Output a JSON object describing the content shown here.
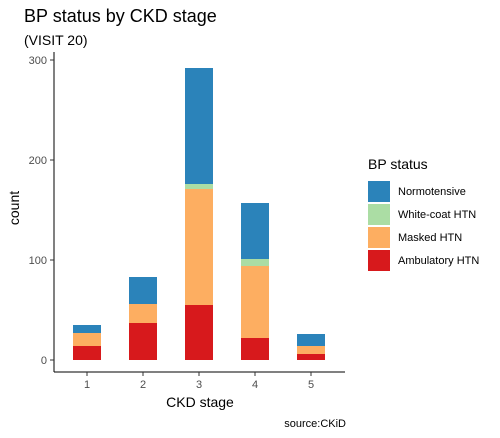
{
  "chart_data": {
    "type": "bar",
    "stacked": true,
    "title": "BP status by CKD stage",
    "subtitle": "(VISIT 20)",
    "xlabel": "CKD stage",
    "ylabel": "count",
    "caption": "source:CKiD",
    "categories": [
      "1",
      "2",
      "3",
      "4",
      "5"
    ],
    "ylim": [
      0,
      300
    ],
    "yticks": [
      0,
      100,
      200,
      300
    ],
    "legend": {
      "title": "BP status",
      "position": "right"
    },
    "grid": false,
    "series": [
      {
        "name": "Ambulatory HTN",
        "color": "#d7191c",
        "values": [
          14,
          37,
          55,
          22,
          6
        ]
      },
      {
        "name": "Masked HTN",
        "color": "#fdae61",
        "values": [
          13,
          19,
          116,
          72,
          8
        ]
      },
      {
        "name": "White-coat HTN",
        "color": "#abdda4",
        "values": [
          0,
          0,
          5,
          7,
          0
        ]
      },
      {
        "name": "Normotensive",
        "color": "#2b83ba",
        "values": [
          8,
          27,
          116,
          56,
          12
        ]
      }
    ]
  }
}
